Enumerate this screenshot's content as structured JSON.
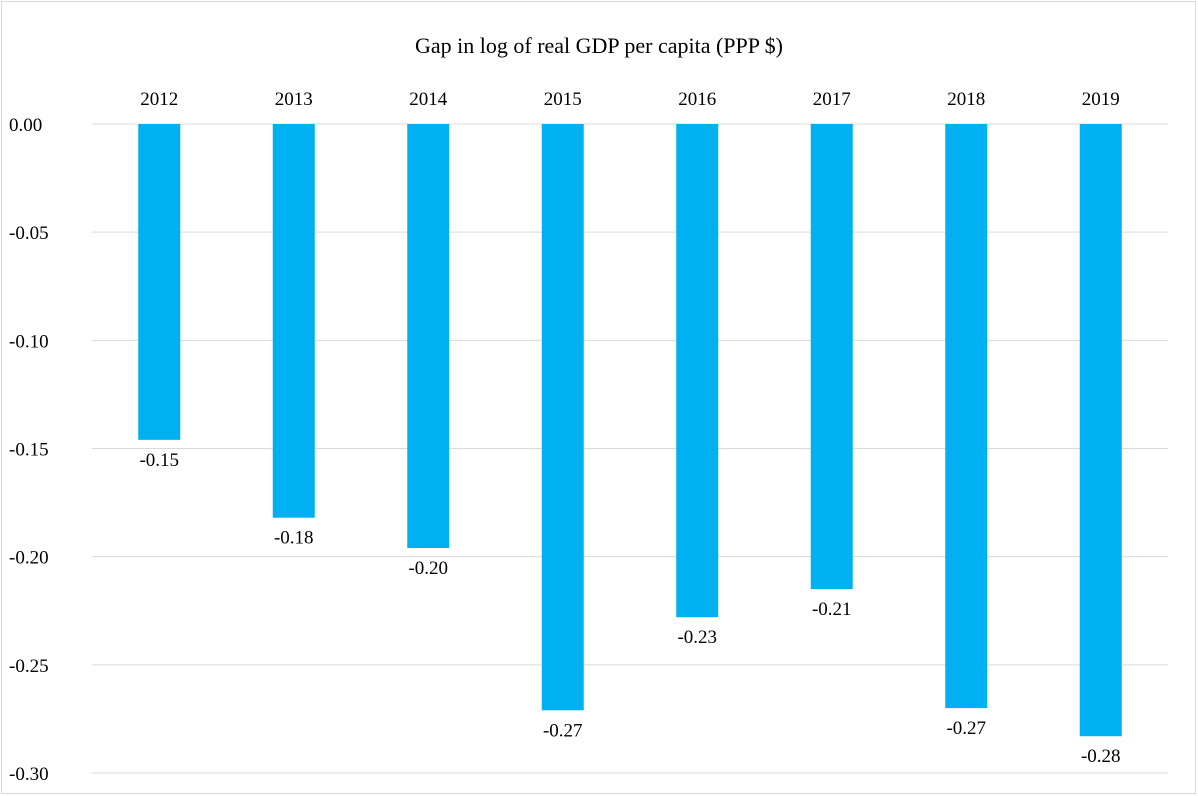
{
  "chart_data": {
    "type": "bar",
    "title": "Gap in log of real GDP per capita (PPP $)",
    "categories": [
      "2012",
      "2013",
      "2014",
      "2015",
      "2016",
      "2017",
      "2018",
      "2019"
    ],
    "values": [
      -0.146,
      -0.182,
      -0.196,
      -0.271,
      -0.228,
      -0.215,
      -0.27,
      -0.283
    ],
    "data_labels": [
      "-0.15",
      "-0.18",
      "-0.20",
      "-0.27",
      "-0.23",
      "-0.21",
      "-0.27",
      "-0.28"
    ],
    "y_ticks": [
      0.0,
      -0.05,
      -0.1,
      -0.15,
      -0.2,
      -0.25,
      -0.3
    ],
    "y_tick_labels": [
      "0.00",
      "-0.05",
      "-0.10",
      "-0.15",
      "-0.20",
      "-0.25",
      "-0.30"
    ],
    "ylim": [
      -0.3,
      0.0
    ],
    "category_axis_position": "top",
    "grid": true,
    "legend": "none",
    "xlabel": "",
    "ylabel": "",
    "colors": {
      "bar": "#00B0F0",
      "grid": "#d9d9d9",
      "text": "#000000"
    }
  }
}
